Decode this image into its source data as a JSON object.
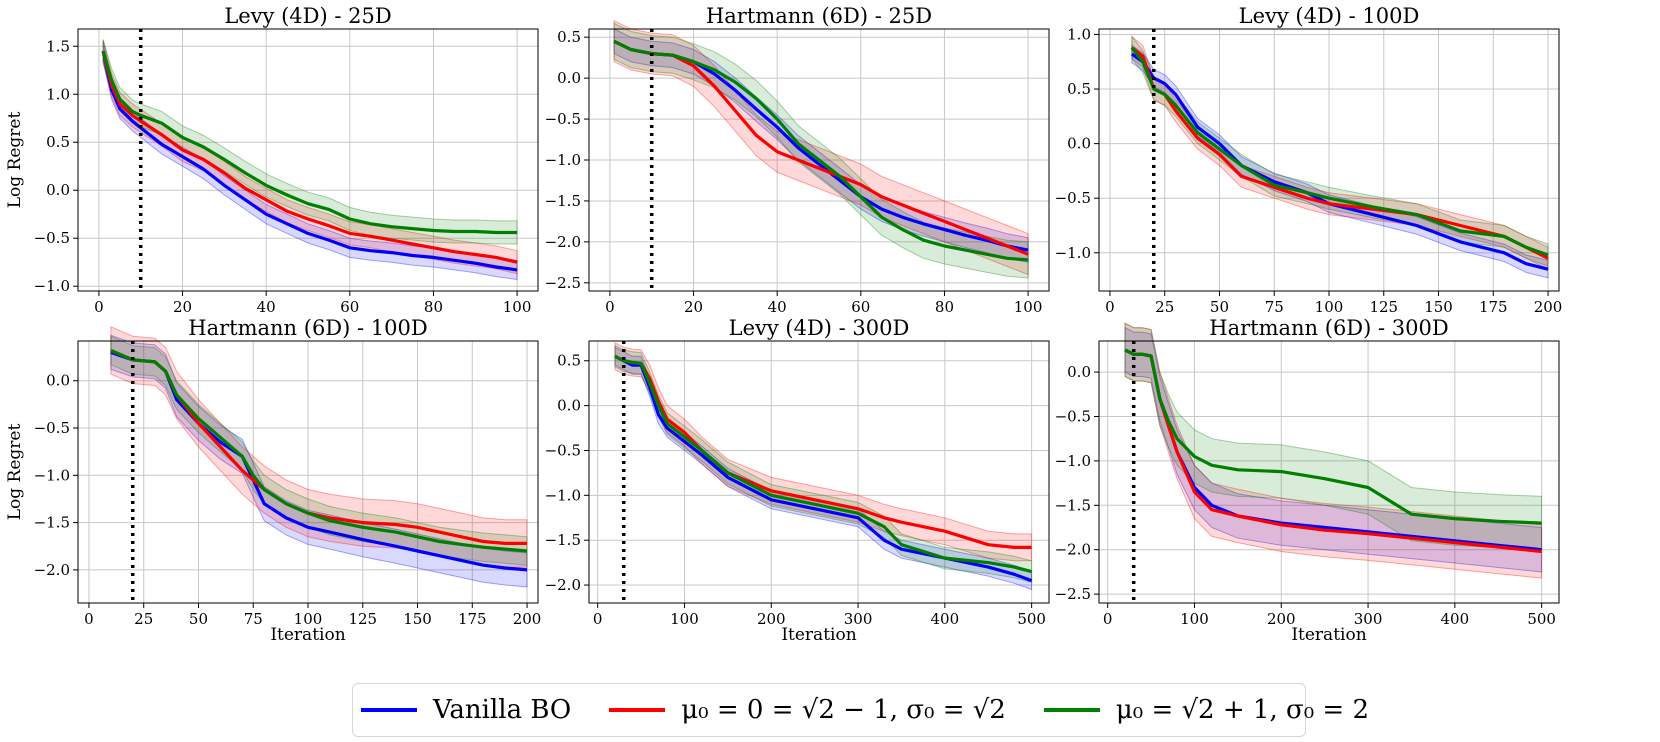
{
  "colors": {
    "vanilla": "#0000ff",
    "red": "#ff0000",
    "green": "#008000",
    "grid": "#c8c8c8",
    "vline": "#000000"
  },
  "legend": {
    "position": "bottom-center",
    "items": [
      {
        "key": "vanilla",
        "label": "Vanilla BO"
      },
      {
        "key": "red",
        "label": "μ₀ = 0 = √2 − 1, σ₀ = √2"
      },
      {
        "key": "green",
        "label": "μ₀ = √2 + 1, σ₀ = 2"
      }
    ]
  },
  "chart_data": [
    {
      "type": "line",
      "title": "Levy (4D) - 25D",
      "xlabel": "",
      "ylabel": "Log Regret",
      "xlim": [
        -5,
        105
      ],
      "ylim": [
        -1.05,
        1.68
      ],
      "xticks": [
        0,
        20,
        40,
        60,
        80,
        100
      ],
      "yticks": [
        -1.0,
        -0.5,
        0.0,
        0.5,
        1.0,
        1.5
      ],
      "grid": true,
      "vline_x": 10,
      "series": [
        {
          "key": "vanilla",
          "x": [
            1,
            3,
            5,
            8,
            10,
            15,
            20,
            25,
            30,
            35,
            40,
            45,
            50,
            55,
            60,
            65,
            70,
            75,
            80,
            85,
            90,
            95,
            100
          ],
          "y": [
            1.45,
            1.05,
            0.85,
            0.72,
            0.65,
            0.48,
            0.35,
            0.22,
            0.05,
            -0.1,
            -0.25,
            -0.35,
            -0.45,
            -0.52,
            -0.6,
            -0.63,
            -0.65,
            -0.68,
            -0.7,
            -0.73,
            -0.76,
            -0.8,
            -0.83
          ],
          "band": 0.1
        },
        {
          "key": "red",
          "x": [
            1,
            3,
            5,
            8,
            10,
            15,
            20,
            25,
            30,
            35,
            40,
            45,
            50,
            55,
            60,
            65,
            70,
            75,
            80,
            85,
            90,
            95,
            100
          ],
          "y": [
            1.45,
            1.1,
            0.9,
            0.78,
            0.72,
            0.58,
            0.42,
            0.32,
            0.18,
            0.02,
            -0.1,
            -0.22,
            -0.3,
            -0.37,
            -0.45,
            -0.48,
            -0.52,
            -0.56,
            -0.6,
            -0.64,
            -0.67,
            -0.7,
            -0.75
          ],
          "band": 0.12
        },
        {
          "key": "green",
          "x": [
            1,
            3,
            5,
            8,
            10,
            15,
            20,
            25,
            30,
            35,
            40,
            45,
            50,
            55,
            60,
            65,
            70,
            75,
            80,
            85,
            90,
            95,
            100
          ],
          "y": [
            1.45,
            1.15,
            0.95,
            0.82,
            0.78,
            0.7,
            0.55,
            0.45,
            0.32,
            0.18,
            0.05,
            -0.05,
            -0.14,
            -0.2,
            -0.3,
            -0.35,
            -0.38,
            -0.4,
            -0.42,
            -0.43,
            -0.43,
            -0.44,
            -0.44
          ],
          "band": 0.12
        }
      ]
    },
    {
      "type": "line",
      "title": "Hartmann (6D) - 25D",
      "xlabel": "",
      "ylabel": "",
      "xlim": [
        -5,
        105
      ],
      "ylim": [
        -2.6,
        0.6
      ],
      "xticks": [
        0,
        20,
        40,
        60,
        80,
        100
      ],
      "yticks": [
        -2.5,
        -2.0,
        -1.5,
        -1.0,
        -0.5,
        0.0,
        0.5
      ],
      "grid": true,
      "vline_x": 10,
      "series": [
        {
          "key": "vanilla",
          "x": [
            1,
            5,
            10,
            15,
            20,
            25,
            30,
            35,
            40,
            45,
            50,
            55,
            60,
            65,
            70,
            75,
            80,
            85,
            90,
            95,
            100
          ],
          "y": [
            0.45,
            0.35,
            0.3,
            0.28,
            0.2,
            0.05,
            -0.15,
            -0.38,
            -0.6,
            -0.85,
            -1.05,
            -1.25,
            -1.45,
            -1.6,
            -1.7,
            -1.78,
            -1.85,
            -1.92,
            -1.98,
            -2.05,
            -2.1
          ],
          "band": 0.15
        },
        {
          "key": "red",
          "x": [
            1,
            5,
            10,
            15,
            20,
            25,
            30,
            35,
            40,
            45,
            50,
            55,
            60,
            65,
            70,
            75,
            80,
            85,
            90,
            95,
            100
          ],
          "y": [
            0.45,
            0.35,
            0.3,
            0.28,
            0.15,
            -0.1,
            -0.4,
            -0.7,
            -0.9,
            -1.0,
            -1.1,
            -1.2,
            -1.3,
            -1.45,
            -1.55,
            -1.65,
            -1.75,
            -1.85,
            -1.95,
            -2.05,
            -2.15
          ],
          "band": 0.25
        },
        {
          "key": "green",
          "x": [
            1,
            5,
            10,
            15,
            20,
            25,
            30,
            35,
            40,
            45,
            50,
            55,
            60,
            65,
            70,
            75,
            80,
            85,
            90,
            95,
            100
          ],
          "y": [
            0.45,
            0.35,
            0.3,
            0.28,
            0.2,
            0.1,
            -0.05,
            -0.25,
            -0.5,
            -0.8,
            -1.0,
            -1.2,
            -1.45,
            -1.7,
            -1.85,
            -1.98,
            -2.05,
            -2.1,
            -2.15,
            -2.2,
            -2.22
          ],
          "band": 0.22
        }
      ]
    },
    {
      "type": "line",
      "title": "Levy (4D) - 100D",
      "xlabel": "",
      "ylabel": "",
      "xlim": [
        -5,
        205
      ],
      "ylim": [
        -1.35,
        1.05
      ],
      "xticks": [
        0,
        25,
        50,
        75,
        100,
        125,
        150,
        175,
        200
      ],
      "yticks": [
        -1.0,
        -0.5,
        0.0,
        0.5,
        1.0
      ],
      "grid": true,
      "vline_x": 20,
      "series": [
        {
          "key": "vanilla",
          "x": [
            10,
            15,
            20,
            25,
            30,
            40,
            50,
            60,
            75,
            90,
            100,
            120,
            140,
            160,
            180,
            190,
            200
          ],
          "y": [
            0.82,
            0.75,
            0.6,
            0.55,
            0.45,
            0.15,
            0.0,
            -0.2,
            -0.35,
            -0.45,
            -0.55,
            -0.65,
            -0.75,
            -0.9,
            -1.0,
            -1.1,
            -1.15
          ],
          "band": 0.08
        },
        {
          "key": "red",
          "x": [
            10,
            15,
            20,
            25,
            30,
            40,
            50,
            60,
            75,
            90,
            100,
            120,
            140,
            160,
            180,
            190,
            200
          ],
          "y": [
            0.88,
            0.8,
            0.5,
            0.45,
            0.3,
            0.05,
            -0.1,
            -0.3,
            -0.4,
            -0.5,
            -0.55,
            -0.6,
            -0.65,
            -0.75,
            -0.85,
            -0.95,
            -1.05
          ],
          "band": 0.1
        },
        {
          "key": "green",
          "x": [
            10,
            15,
            20,
            25,
            30,
            40,
            50,
            60,
            75,
            90,
            100,
            120,
            140,
            160,
            180,
            190,
            200
          ],
          "y": [
            0.88,
            0.75,
            0.5,
            0.45,
            0.35,
            0.1,
            -0.05,
            -0.2,
            -0.38,
            -0.45,
            -0.5,
            -0.58,
            -0.65,
            -0.8,
            -0.85,
            -0.95,
            -1.02
          ],
          "band": 0.1
        }
      ]
    },
    {
      "type": "line",
      "title": "Hartmann (6D) - 100D",
      "xlabel": "Iteration",
      "ylabel": "Log Regret",
      "xlim": [
        -5,
        205
      ],
      "ylim": [
        -2.35,
        0.42
      ],
      "xticks": [
        0,
        25,
        50,
        75,
        100,
        125,
        150,
        175,
        200
      ],
      "yticks": [
        -2.0,
        -1.5,
        -1.0,
        -0.5,
        0.0
      ],
      "grid": true,
      "vline_x": 20,
      "series": [
        {
          "key": "vanilla",
          "x": [
            10,
            20,
            30,
            35,
            40,
            50,
            60,
            70,
            75,
            80,
            90,
            100,
            110,
            125,
            140,
            150,
            160,
            170,
            180,
            190,
            200
          ],
          "y": [
            0.3,
            0.22,
            0.2,
            0.1,
            -0.2,
            -0.45,
            -0.65,
            -0.8,
            -1.05,
            -1.3,
            -1.45,
            -1.55,
            -1.6,
            -1.68,
            -1.75,
            -1.8,
            -1.85,
            -1.9,
            -1.95,
            -1.98,
            -2.0
          ],
          "band": 0.18
        },
        {
          "key": "red",
          "x": [
            10,
            20,
            30,
            35,
            40,
            50,
            60,
            70,
            75,
            80,
            90,
            100,
            110,
            125,
            140,
            150,
            160,
            170,
            180,
            190,
            200
          ],
          "y": [
            0.32,
            0.22,
            0.2,
            0.1,
            -0.15,
            -0.45,
            -0.7,
            -0.95,
            -1.05,
            -1.15,
            -1.3,
            -1.4,
            -1.45,
            -1.5,
            -1.52,
            -1.55,
            -1.6,
            -1.65,
            -1.7,
            -1.72,
            -1.72
          ],
          "band": 0.25
        },
        {
          "key": "green",
          "x": [
            10,
            20,
            30,
            35,
            40,
            50,
            60,
            70,
            75,
            80,
            90,
            100,
            110,
            125,
            140,
            150,
            160,
            170,
            180,
            190,
            200
          ],
          "y": [
            0.32,
            0.22,
            0.2,
            0.1,
            -0.15,
            -0.4,
            -0.6,
            -0.8,
            -1.0,
            -1.15,
            -1.3,
            -1.4,
            -1.48,
            -1.55,
            -1.6,
            -1.65,
            -1.7,
            -1.73,
            -1.76,
            -1.78,
            -1.8
          ],
          "band": 0.15
        }
      ]
    },
    {
      "type": "line",
      "title": "Levy (4D) - 300D",
      "xlabel": "Iteration",
      "ylabel": "",
      "xlim": [
        -10,
        520
      ],
      "ylim": [
        -2.2,
        0.72
      ],
      "xticks": [
        0,
        100,
        200,
        300,
        400,
        500
      ],
      "yticks": [
        -2.0,
        -1.5,
        -1.0,
        -0.5,
        0.0,
        0.5
      ],
      "grid": true,
      "vline_x": 30,
      "series": [
        {
          "key": "vanilla",
          "x": [
            20,
            30,
            40,
            50,
            60,
            70,
            80,
            100,
            120,
            150,
            200,
            250,
            300,
            330,
            350,
            400,
            450,
            480,
            500
          ],
          "y": [
            0.55,
            0.5,
            0.45,
            0.45,
            0.2,
            -0.1,
            -0.25,
            -0.4,
            -0.55,
            -0.8,
            -1.05,
            -1.15,
            -1.25,
            -1.5,
            -1.6,
            -1.7,
            -1.8,
            -1.88,
            -1.95
          ],
          "band": 0.1
        },
        {
          "key": "red",
          "x": [
            20,
            30,
            40,
            50,
            60,
            70,
            80,
            100,
            120,
            150,
            200,
            250,
            300,
            330,
            350,
            400,
            450,
            480,
            500
          ],
          "y": [
            0.55,
            0.5,
            0.48,
            0.47,
            0.3,
            0.05,
            -0.15,
            -0.3,
            -0.5,
            -0.75,
            -0.95,
            -1.05,
            -1.15,
            -1.25,
            -1.3,
            -1.4,
            -1.55,
            -1.58,
            -1.58
          ],
          "band": 0.15
        },
        {
          "key": "green",
          "x": [
            20,
            30,
            40,
            50,
            60,
            70,
            80,
            100,
            120,
            150,
            200,
            250,
            300,
            330,
            350,
            400,
            450,
            480,
            500
          ],
          "y": [
            0.55,
            0.5,
            0.48,
            0.47,
            0.25,
            0.0,
            -0.2,
            -0.35,
            -0.5,
            -0.75,
            -1.0,
            -1.1,
            -1.2,
            -1.35,
            -1.55,
            -1.7,
            -1.75,
            -1.8,
            -1.85
          ],
          "band": 0.12
        }
      ]
    },
    {
      "type": "line",
      "title": "Hartmann (6D) - 300D",
      "xlabel": "Iteration",
      "ylabel": "",
      "xlim": [
        -10,
        520
      ],
      "ylim": [
        -2.6,
        0.35
      ],
      "xticks": [
        0,
        100,
        200,
        300,
        400,
        500
      ],
      "yticks": [
        -2.5,
        -2.0,
        -1.5,
        -1.0,
        -0.5,
        0.0
      ],
      "grid": true,
      "vline_x": 30,
      "series": [
        {
          "key": "vanilla",
          "x": [
            20,
            30,
            40,
            50,
            60,
            70,
            80,
            100,
            120,
            150,
            200,
            250,
            300,
            350,
            400,
            450,
            500
          ],
          "y": [
            0.25,
            0.2,
            0.2,
            0.18,
            -0.3,
            -0.6,
            -0.9,
            -1.3,
            -1.5,
            -1.62,
            -1.7,
            -1.75,
            -1.8,
            -1.85,
            -1.9,
            -1.95,
            -2.0
          ],
          "band": 0.25
        },
        {
          "key": "red",
          "x": [
            20,
            30,
            40,
            50,
            60,
            70,
            80,
            100,
            120,
            150,
            200,
            250,
            300,
            350,
            400,
            450,
            500
          ],
          "y": [
            0.25,
            0.2,
            0.2,
            0.18,
            -0.3,
            -0.6,
            -0.9,
            -1.35,
            -1.55,
            -1.62,
            -1.72,
            -1.78,
            -1.82,
            -1.87,
            -1.92,
            -1.97,
            -2.02
          ],
          "band": 0.3
        },
        {
          "key": "green",
          "x": [
            20,
            30,
            40,
            50,
            60,
            70,
            80,
            100,
            120,
            150,
            200,
            250,
            300,
            350,
            400,
            450,
            500
          ],
          "y": [
            0.25,
            0.2,
            0.2,
            0.18,
            -0.3,
            -0.55,
            -0.75,
            -0.95,
            -1.05,
            -1.1,
            -1.12,
            -1.2,
            -1.3,
            -1.6,
            -1.65,
            -1.68,
            -1.7
          ],
          "band": 0.3
        }
      ]
    }
  ]
}
